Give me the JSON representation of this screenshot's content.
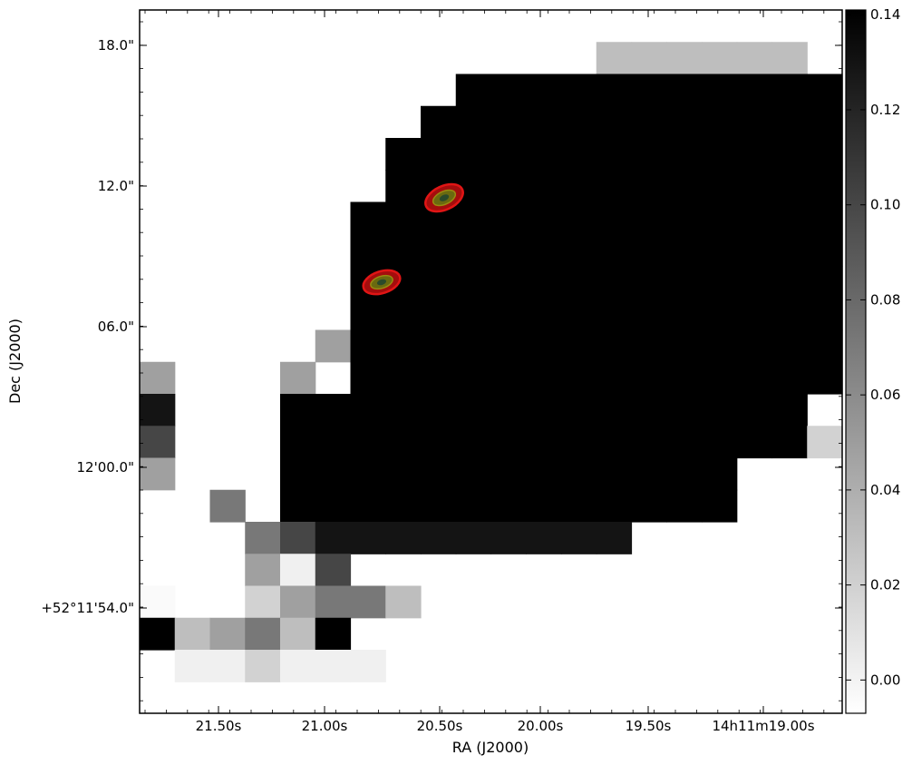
{
  "chart_data": {
    "type": "heatmap",
    "title": "",
    "xlabel": "RA (J2000)",
    "ylabel": "Dec (J2000)",
    "x_ticks": [
      "21.50s",
      "21.00s",
      "20.50s",
      "20.00s",
      "19.50s",
      "14h11m19.00s"
    ],
    "y_ticks": [
      "18.0\"",
      "12.0\"",
      "06.0\"",
      "12'00.0\"",
      "+52°11'54.0\""
    ],
    "colorbar": {
      "ticks": [
        "0.14",
        "0.12",
        "0.10",
        "0.08",
        "0.06",
        "0.04",
        "0.02",
        "0.00"
      ],
      "range": [
        -0.007,
        0.141
      ],
      "colormap": "gray_r"
    },
    "grid": false,
    "legend": "none",
    "cell_scale": [
      0,
      9
    ],
    "pixel_grid": [
      "000000000000000000000002346463",
      "00000000000005555550085564668",
      "00000000033333333333380674676",
      "00000000333333333333352328",
      "00000003333333333333311339",
      "00000003333333333333333324213",
      "00000033333333333333333345412",
      "00000033333333333333333330035",
      "00000033333333333333333333",
      "00000033333333333333333",
      "00000633333333333333333",
      "60006033333333333333333",
      "90003333333333333330",
      "80003333333333333334",
      "60003333333333333",
      "00703333333333333",
      "00078999999999",
      "00062800",
      "1004677500",
      "3567530000000000000000000000000",
      "0224222000000000000000000000000",
      "0000000000000000000000000000000"
    ],
    "contours": [
      {
        "center_ra_offset_s": 20.45,
        "center_dec_offset_arcsec": 11.5,
        "color": "#d01010"
      },
      {
        "center_ra_offset_s": 20.75,
        "center_dec_offset_arcsec": 8.4,
        "color": "#d01010"
      }
    ]
  }
}
